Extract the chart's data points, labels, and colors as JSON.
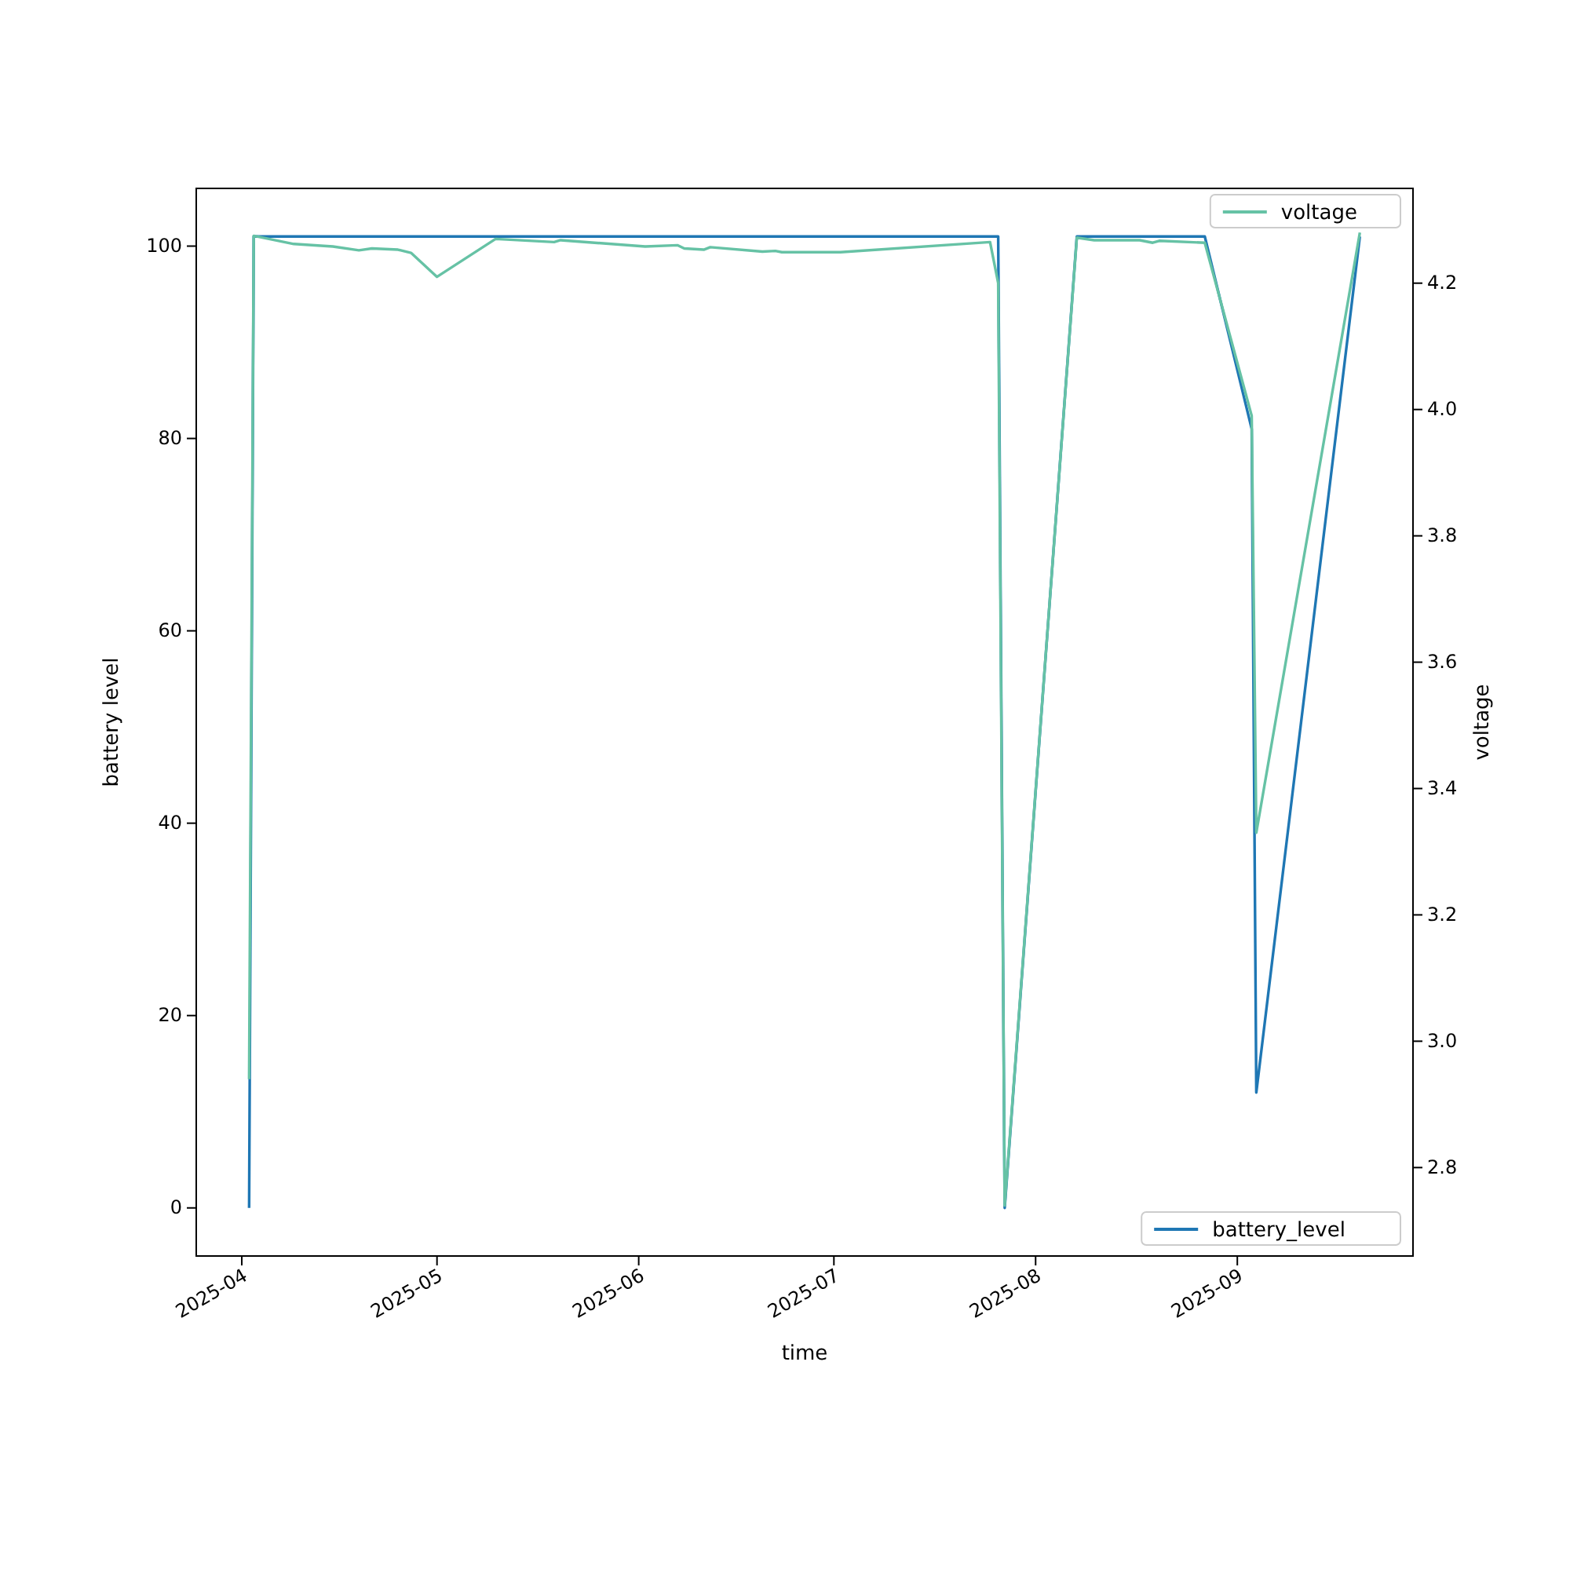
{
  "chart_data": {
    "type": "line",
    "xlabel": "time",
    "ylabel": "battery level",
    "y2label": "voltage",
    "xlim": [
      "2025-03-25",
      "2025-09-28"
    ],
    "xticks": [
      {
        "value": "2025-04-01",
        "label": "2025-04"
      },
      {
        "value": "2025-05-01",
        "label": "2025-05"
      },
      {
        "value": "2025-06-01",
        "label": "2025-06"
      },
      {
        "value": "2025-07-01",
        "label": "2025-07"
      },
      {
        "value": "2025-08-01",
        "label": "2025-08"
      },
      {
        "value": "2025-09-01",
        "label": "2025-09"
      }
    ],
    "ylim": [
      -5,
      106
    ],
    "yticks": [
      0,
      20,
      40,
      60,
      80,
      100
    ],
    "y2lim": [
      2.66,
      4.35
    ],
    "y2ticks": [
      2.8,
      {
        "value": 3,
        "label": "3.0"
      },
      3.2,
      3.4,
      3.6,
      3.8,
      {
        "value": 4,
        "label": "4.0"
      },
      4.2
    ],
    "legend": "right",
    "grid": false,
    "series": [
      {
        "name": "battery_level",
        "color": "#1f77b4",
        "x": [
          "2025-04-02T03:00",
          "2025-04-02T20:00",
          "2025-07-26T06:00",
          "2025-07-27T06:00",
          "2025-08-07T08:00",
          "2025-08-27T00:00",
          "2025-09-03T05:00",
          "2025-09-03T22:00",
          "2025-09-19T20:00"
        ],
        "values": [
          0,
          101,
          101,
          0,
          101,
          101,
          81,
          12,
          101
        ]
      },
      {
        "name": "voltage",
        "color": "#66c2a5",
        "axis": "y2",
        "x": [
          "2025-04-02T03:00",
          "2025-04-02T20:00",
          "2025-04-09",
          "2025-04-15",
          "2025-04-19",
          "2025-04-21",
          "2025-04-25",
          "2025-04-27",
          "2025-05-01",
          "2025-05-10",
          "2025-05-19",
          "2025-05-20",
          "2025-06-02",
          "2025-06-07",
          "2025-06-08",
          "2025-06-11",
          "2025-06-12",
          "2025-06-20",
          "2025-06-22",
          "2025-06-23",
          "2025-07-02",
          "2025-07-25",
          "2025-07-26T06:00",
          "2025-07-27T06:00",
          "2025-08-07T08:00",
          "2025-08-10",
          "2025-08-17",
          "2025-08-19",
          "2025-08-20",
          "2025-08-27",
          "2025-09-03T05:00",
          "2025-09-03T22:00",
          "2025-09-19T20:00"
        ],
        "values": [
          2.94,
          4.275,
          4.262,
          4.258,
          4.252,
          4.255,
          4.253,
          4.248,
          4.21,
          4.27,
          4.265,
          4.268,
          4.258,
          4.26,
          4.255,
          4.253,
          4.257,
          4.25,
          4.251,
          4.249,
          4.249,
          4.265,
          4.2,
          2.74,
          4.272,
          4.268,
          4.268,
          4.264,
          4.267,
          4.264,
          3.99,
          3.33,
          4.28
        ]
      }
    ]
  }
}
